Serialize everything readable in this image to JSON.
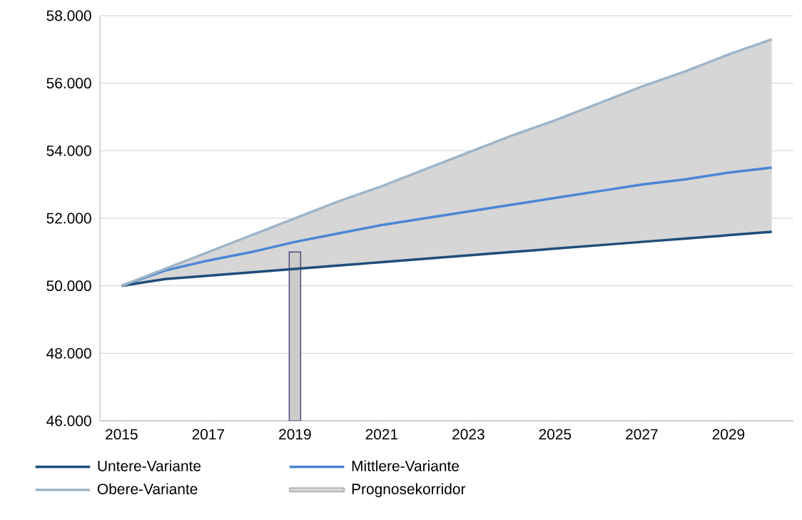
{
  "chart_data": {
    "type": "line",
    "x": [
      2015,
      2016,
      2017,
      2018,
      2019,
      2020,
      2021,
      2022,
      2023,
      2024,
      2025,
      2026,
      2027,
      2028,
      2029,
      2030
    ],
    "series": [
      {
        "name": "Untere-Variante",
        "color": "#1f4e79",
        "values": [
          50000,
          50200,
          50300,
          50400,
          50500,
          50600,
          50700,
          50800,
          50900,
          51000,
          51100,
          51200,
          51300,
          51400,
          51500,
          51600
        ]
      },
      {
        "name": "Mittlere-Variante",
        "color": "#4a86d4",
        "values": [
          50000,
          50450,
          50750,
          51000,
          51300,
          51550,
          51800,
          52000,
          52200,
          52400,
          52600,
          52800,
          53000,
          53150,
          53350,
          53500
        ]
      },
      {
        "name": "Obere-Variante",
        "color": "#9fb5c8",
        "values": [
          50000,
          50500,
          51000,
          51500,
          52000,
          52500,
          52950,
          53450,
          53950,
          54450,
          54900,
          55400,
          55900,
          56350,
          56850,
          57300
        ]
      },
      {
        "name": "Prognosekorridor",
        "type": "area",
        "color": "#d6d6d6",
        "values": [
          null,
          null,
          null,
          null,
          null,
          null,
          null,
          null,
          null,
          null,
          null,
          null,
          null,
          null,
          null,
          null
        ],
        "lower": [
          50000,
          50200,
          50300,
          50400,
          50500,
          50600,
          50700,
          50800,
          50900,
          51000,
          51100,
          51200,
          51300,
          51400,
          51500,
          51600
        ],
        "upper": [
          50000,
          50500,
          51000,
          51500,
          52000,
          52500,
          52950,
          53450,
          53950,
          54450,
          54900,
          55400,
          55900,
          56350,
          56850,
          57300
        ]
      },
      {
        "type": "bar",
        "color": "#cccccc",
        "x": [
          2019
        ],
        "values": [
          51000
        ]
      }
    ],
    "xlim": [
      2014.5,
      2030.5
    ],
    "ylim": [
      46000,
      58000
    ],
    "xticks": [
      2015,
      2017,
      2019,
      2021,
      2023,
      2025,
      2027,
      2029
    ],
    "yticks": [
      {
        "value": 46000,
        "label": "46.000"
      },
      {
        "value": 48000,
        "label": "48.000"
      },
      {
        "value": 50000,
        "label": "50.000"
      },
      {
        "value": 52000,
        "label": "52.000"
      },
      {
        "value": 54000,
        "label": "54.000"
      },
      {
        "value": 56000,
        "label": "56.000"
      },
      {
        "value": 58000,
        "label": "58.000"
      }
    ],
    "grid": "y",
    "legend": "bottom"
  }
}
